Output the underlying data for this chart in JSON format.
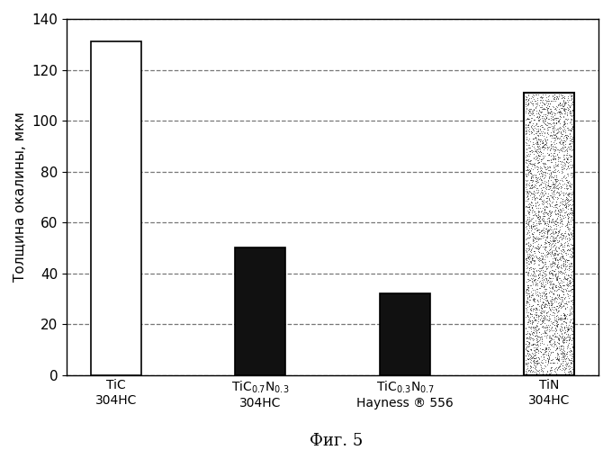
{
  "values": [
    131,
    50,
    32,
    111
  ],
  "bar_colors": [
    "white",
    "#111111",
    "#111111",
    "lightgray"
  ],
  "ylabel": "Толщина окалины, мкм",
  "caption": "Фиг. 5",
  "ylim": [
    0,
    140
  ],
  "yticks": [
    0,
    20,
    40,
    60,
    80,
    100,
    120,
    140
  ],
  "background_color": "#ffffff",
  "edgecolor": "black",
  "bar_width": 0.35,
  "noise_density": 0.45,
  "grid_color": "#555555",
  "grid_alpha": 0.8
}
